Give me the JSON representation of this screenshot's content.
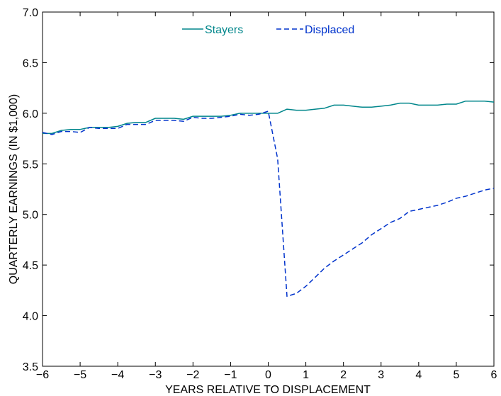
{
  "chart_data": {
    "type": "line",
    "title": "",
    "xlabel": "YEARS RELATIVE TO DISPLACEMENT",
    "ylabel": "QUARTERLY EARNINGS (IN $1,000)",
    "xlim": [
      -6,
      6
    ],
    "ylim": [
      3.5,
      7.0
    ],
    "xticks": [
      -6,
      -5,
      -4,
      -3,
      -2,
      -1,
      0,
      1,
      2,
      3,
      4,
      5,
      6
    ],
    "yticks": [
      3.5,
      4.0,
      4.5,
      5.0,
      5.5,
      6.0,
      6.5,
      7.0
    ],
    "xtick_labels": [
      "−6",
      "−5",
      "−4",
      "−3",
      "−2",
      "−1",
      "0",
      "1",
      "2",
      "3",
      "4",
      "5",
      "6"
    ],
    "ytick_labels": [
      "3.5",
      "4.0",
      "4.5",
      "5.0",
      "5.5",
      "6.0",
      "6.5",
      "7.0"
    ],
    "grid": false,
    "legend_position": "top-center",
    "x": [
      -6.0,
      -5.75,
      -5.5,
      -5.25,
      -5.0,
      -4.75,
      -4.5,
      -4.25,
      -4.0,
      -3.75,
      -3.5,
      -3.25,
      -3.0,
      -2.75,
      -2.5,
      -2.25,
      -2.0,
      -1.75,
      -1.5,
      -1.25,
      -1.0,
      -0.75,
      -0.5,
      -0.25,
      0.0,
      0.25,
      0.5,
      0.75,
      1.0,
      1.25,
      1.5,
      1.75,
      2.0,
      2.25,
      2.5,
      2.75,
      3.0,
      3.25,
      3.5,
      3.75,
      4.0,
      4.25,
      4.5,
      4.75,
      5.0,
      5.25,
      5.5,
      5.75,
      6.0
    ],
    "series": [
      {
        "name": "Stayers",
        "color": "#00868B",
        "dash": "solid",
        "values": [
          5.8,
          5.8,
          5.83,
          5.84,
          5.84,
          5.86,
          5.86,
          5.86,
          5.87,
          5.9,
          5.91,
          5.91,
          5.95,
          5.95,
          5.95,
          5.94,
          5.97,
          5.97,
          5.97,
          5.97,
          5.98,
          6.0,
          6.0,
          6.0,
          6.0,
          6.0,
          6.04,
          6.03,
          6.03,
          6.04,
          6.05,
          6.08,
          6.08,
          6.07,
          6.06,
          6.06,
          6.07,
          6.08,
          6.1,
          6.1,
          6.08,
          6.08,
          6.08,
          6.09,
          6.09,
          6.12,
          6.12,
          6.12,
          6.11
        ]
      },
      {
        "name": "Displaced",
        "color": "#0033CC",
        "dash": "dashed",
        "values": [
          5.81,
          5.79,
          5.82,
          5.82,
          5.81,
          5.86,
          5.85,
          5.85,
          5.85,
          5.89,
          5.89,
          5.89,
          5.93,
          5.93,
          5.93,
          5.92,
          5.96,
          5.95,
          5.95,
          5.96,
          5.97,
          5.99,
          5.98,
          5.99,
          6.02,
          5.55,
          4.19,
          4.22,
          4.29,
          4.38,
          4.47,
          4.54,
          4.6,
          4.66,
          4.72,
          4.8,
          4.86,
          4.92,
          4.96,
          5.03,
          5.05,
          5.07,
          5.09,
          5.12,
          5.16,
          5.18,
          5.21,
          5.24,
          5.26
        ]
      }
    ]
  }
}
